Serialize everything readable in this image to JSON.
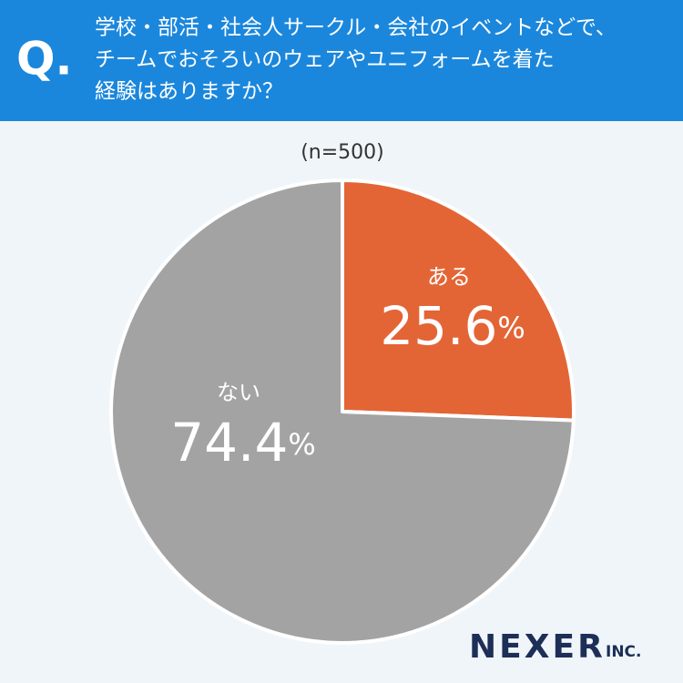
{
  "chart_data": {
    "type": "pie",
    "title_prefix": "Q.",
    "title": [
      "学校・部活・社会人サークル・会社のイベントなどで、",
      "チームでおそろいのウェアやユニフォームを着た",
      "経験はありますか？"
    ],
    "subtitle": "(n=500)",
    "categories": [
      "ある",
      "ない"
    ],
    "values": [
      25.6,
      74.4
    ],
    "value_labels": [
      "25.6%",
      "74.4%"
    ],
    "colors": [
      "#e36536",
      "#a3a3a3"
    ],
    "logo": "NEXER",
    "logo_suffix": "INC."
  }
}
